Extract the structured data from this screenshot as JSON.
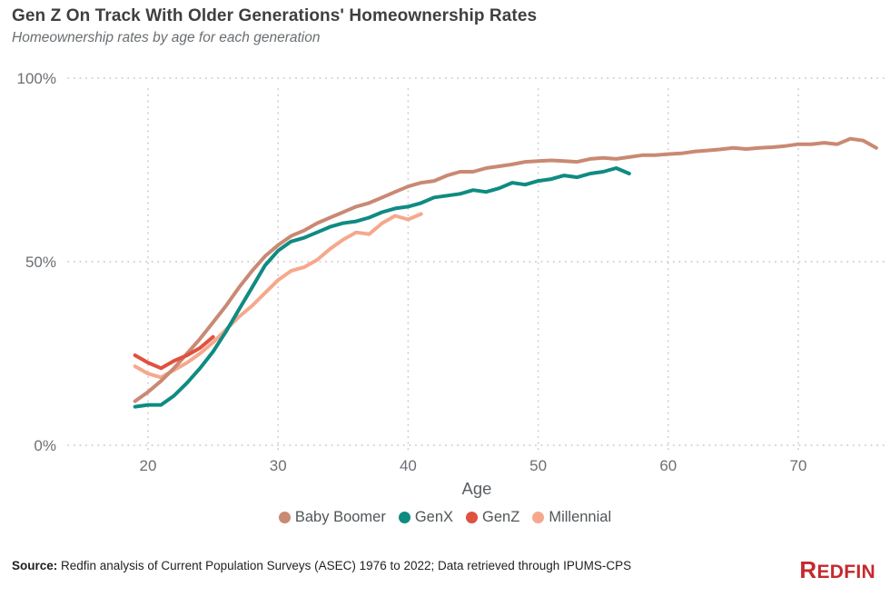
{
  "header": {
    "title": "Gen Z On Track With Older Generations' Homeownership Rates",
    "subtitle": "Homeownership rates by age for each generation"
  },
  "chart_data": {
    "type": "line",
    "title": "Gen Z On Track With Older Generations' Homeownership Rates",
    "subtitle": "Homeownership rates by age for each generation",
    "xlabel": "Age",
    "ylabel": "",
    "xlim": [
      14,
      77
    ],
    "ylim": [
      0,
      100
    ],
    "x_ticks": [
      20,
      30,
      40,
      50,
      60,
      70
    ],
    "y_ticks": [
      0,
      50,
      100
    ],
    "y_tick_labels": [
      "0%",
      "50%",
      "100%"
    ],
    "grid": "dotted",
    "legend_position": "bottom",
    "units": "percent homeownership rate",
    "series": [
      {
        "name": "Baby Boomer",
        "color": "#c98973",
        "age_start": 19,
        "values": [
          12,
          14.5,
          17.5,
          21,
          25,
          29,
          33.5,
          38,
          43,
          47.5,
          51.5,
          54.5,
          57,
          58.5,
          60.5,
          62,
          63.5,
          65,
          66,
          67.5,
          69,
          70.5,
          71.5,
          72,
          73.5,
          74.5,
          74.5,
          75.5,
          76,
          76.5,
          77.2,
          77.4,
          77.6,
          77.4,
          77.2,
          78,
          78.3,
          78,
          78.5,
          79,
          79,
          79.3,
          79.5,
          80,
          80.3,
          80.6,
          81,
          80.7,
          81,
          81.2,
          81.5,
          82,
          82,
          82.4,
          82,
          83.5,
          83,
          81
        ]
      },
      {
        "name": "GenX",
        "color": "#0f8b82",
        "age_start": 19,
        "values": [
          10.5,
          11,
          11,
          13.5,
          17,
          21,
          25.5,
          31,
          37,
          43,
          49,
          53,
          55.5,
          56.5,
          58,
          59.5,
          60.5,
          61,
          62,
          63.5,
          64.5,
          65,
          66,
          67.5,
          68,
          68.5,
          69.5,
          69,
          70,
          71.5,
          71,
          72,
          72.5,
          73.5,
          73,
          74,
          74.5,
          75.5,
          74
        ]
      },
      {
        "name": "GenZ",
        "color": "#e0513f",
        "age_start": 19,
        "values": [
          24.5,
          22.5,
          21,
          23,
          24.5,
          26.5,
          29.5
        ]
      },
      {
        "name": "Millennial",
        "color": "#f6a88c",
        "age_start": 19,
        "values": [
          21.5,
          19.5,
          18.5,
          20.5,
          22.5,
          25,
          28,
          31.5,
          35,
          38,
          41.5,
          45,
          47.5,
          48.5,
          50.5,
          53.5,
          56,
          58,
          57.5,
          60.5,
          62.5,
          61.5,
          63
        ]
      }
    ],
    "z_order": [
      "Millennial",
      "Baby Boomer",
      "GenX",
      "GenZ"
    ]
  },
  "footer": {
    "source_label": "Source:",
    "source_text": " Redfin analysis of Current Population Surveys (ASEC) 1976 to 2022; Data retrieved through IPUMS-CPS",
    "logo_text": "REDFIN"
  }
}
